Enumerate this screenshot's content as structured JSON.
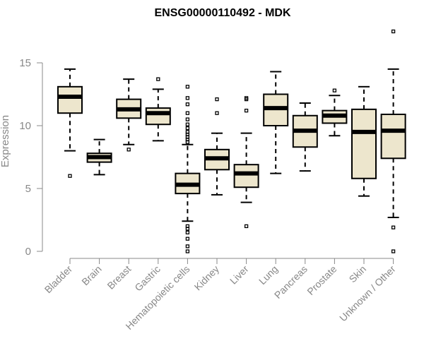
{
  "chart_data": {
    "type": "boxplot",
    "title": "ENSG00000110492 - MDK",
    "xlabel": "",
    "ylabel": "Expression",
    "ylim": [
      0,
      17.5
    ],
    "yticks": [
      0,
      5,
      10,
      15
    ],
    "grid": false,
    "categories": [
      "Bladder",
      "Brain",
      "Breast",
      "Gastric",
      "Hematopoietic cells",
      "Kidney",
      "Liver",
      "Lung",
      "Pancreas",
      "Prostate",
      "Skin",
      "Unknown / Other"
    ],
    "boxes": [
      {
        "category": "Bladder",
        "whisker_low": 8.0,
        "q1": 11.0,
        "median": 12.3,
        "q3": 13.1,
        "whisker_high": 14.5,
        "outliers": [
          6.0
        ]
      },
      {
        "category": "Brain",
        "whisker_low": 6.1,
        "q1": 7.1,
        "median": 7.5,
        "q3": 7.8,
        "whisker_high": 8.9,
        "outliers": []
      },
      {
        "category": "Breast",
        "whisker_low": 8.5,
        "q1": 10.6,
        "median": 11.3,
        "q3": 12.1,
        "whisker_high": 13.7,
        "outliers": [
          8.1
        ]
      },
      {
        "category": "Gastric",
        "whisker_low": 8.8,
        "q1": 10.1,
        "median": 11.0,
        "q3": 11.4,
        "whisker_high": 12.9,
        "outliers": [
          13.7
        ]
      },
      {
        "category": "Hematopoietic cells",
        "whisker_low": 2.4,
        "q1": 4.6,
        "median": 5.3,
        "q3": 6.2,
        "whisker_high": 8.5,
        "outliers": [
          0.0,
          0.4,
          1.0,
          1.5,
          1.8,
          2.0,
          8.7,
          8.9,
          9.1,
          9.3,
          9.5,
          9.8,
          10.1,
          10.5,
          11.0,
          11.7,
          12.2,
          13.1
        ]
      },
      {
        "category": "Kidney",
        "whisker_low": 4.5,
        "q1": 6.5,
        "median": 7.4,
        "q3": 8.1,
        "whisker_high": 9.4,
        "outliers": [
          11.0,
          12.1
        ]
      },
      {
        "category": "Liver",
        "whisker_low": 3.9,
        "q1": 5.1,
        "median": 6.2,
        "q3": 6.9,
        "whisker_high": 9.4,
        "outliers": [
          2.0,
          11.2,
          12.1,
          12.2
        ]
      },
      {
        "category": "Lung",
        "whisker_low": 6.2,
        "q1": 10.0,
        "median": 11.4,
        "q3": 12.5,
        "whisker_high": 14.3,
        "outliers": []
      },
      {
        "category": "Pancreas",
        "whisker_low": 6.4,
        "q1": 8.3,
        "median": 9.6,
        "q3": 10.8,
        "whisker_high": 11.8,
        "outliers": []
      },
      {
        "category": "Prostate",
        "whisker_low": 9.2,
        "q1": 10.2,
        "median": 10.8,
        "q3": 11.2,
        "whisker_high": 12.4,
        "outliers": [
          12.8
        ]
      },
      {
        "category": "Skin",
        "whisker_low": 4.4,
        "q1": 5.8,
        "median": 9.5,
        "q3": 11.3,
        "whisker_high": 13.1,
        "outliers": []
      },
      {
        "category": "Unknown / Other",
        "whisker_low": 2.7,
        "q1": 7.4,
        "median": 9.6,
        "q3": 10.9,
        "whisker_high": 14.5,
        "outliers": [
          0.0,
          1.9,
          17.5
        ]
      }
    ]
  },
  "colors": {
    "box_fill": "#ede6cd",
    "box_stroke": "#000000",
    "axis_text": "#888888"
  }
}
